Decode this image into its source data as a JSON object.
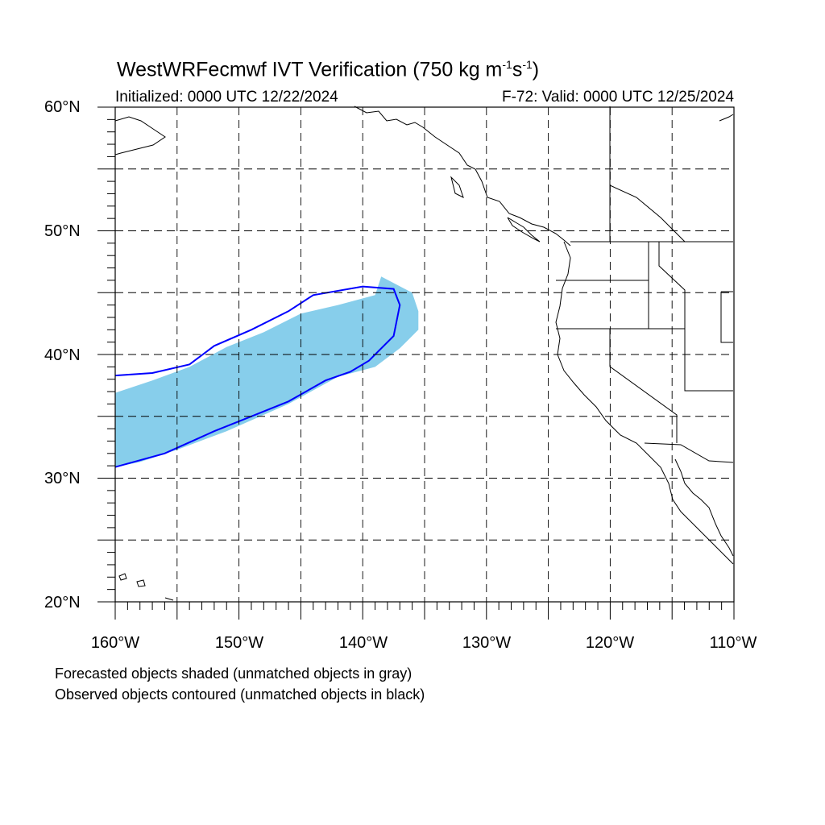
{
  "title": {
    "main": "WestWRFecmwf IVT Verification (750 kg m",
    "unit_exp1": "-1",
    "unit_mid": "s",
    "unit_exp2": "-1",
    "unit_close": ")"
  },
  "subtitle": {
    "initialized": "Initialized: 0000 UTC 12/22/2024",
    "valid": "F-72: Valid: 0000 UTC 12/25/2024"
  },
  "lat_labels": [
    "60°N",
    "50°N",
    "40°N",
    "30°N",
    "20°N"
  ],
  "lon_labels": [
    "160°W",
    "150°W",
    "140°W",
    "130°W",
    "120°W",
    "110°W"
  ],
  "notes": {
    "forecast": "Forecasted objects shaded (unmatched objects in gray)",
    "observed": "Observed objects contoured (unmatched objects in black)"
  },
  "colors": {
    "forecast_fill": "#87ceeb",
    "observed_contour": "#0000ff",
    "coastline": "#000000",
    "grid": "#000000"
  },
  "map_extent": {
    "lon": [
      -160,
      -110
    ],
    "lat": [
      20,
      60
    ]
  },
  "forecast_object": [
    [
      -160,
      36.9
    ],
    [
      -157,
      37.9
    ],
    [
      -154,
      39.0
    ],
    [
      -151,
      40.6
    ],
    [
      -148,
      41.8
    ],
    [
      -145,
      43.3
    ],
    [
      -142,
      44.0
    ],
    [
      -139,
      44.8
    ],
    [
      -138.5,
      46.3
    ],
    [
      -136,
      45.0
    ],
    [
      -135.5,
      43.5
    ],
    [
      -135.5,
      42.0
    ],
    [
      -137,
      40.5
    ],
    [
      -139,
      39.0
    ],
    [
      -142,
      38.2
    ],
    [
      -146,
      36.0
    ],
    [
      -151,
      33.8
    ],
    [
      -155,
      32.3
    ],
    [
      -158,
      31.3
    ],
    [
      -160,
      30.9
    ]
  ],
  "observed_contour": [
    [
      -160,
      38.3
    ],
    [
      -157,
      38.5
    ],
    [
      -154,
      39.2
    ],
    [
      -152,
      40.7
    ],
    [
      -149,
      42.0
    ],
    [
      -146,
      43.5
    ],
    [
      -144,
      44.8
    ],
    [
      -140,
      45.5
    ],
    [
      -137.5,
      45.3
    ],
    [
      -137,
      44.0
    ],
    [
      -137.5,
      41.5
    ],
    [
      -139.5,
      39.5
    ],
    [
      -141,
      38.6
    ],
    [
      -143,
      37.9
    ],
    [
      -146,
      36.2
    ],
    [
      -149,
      35.0
    ],
    [
      -152,
      33.8
    ],
    [
      -156,
      32.0
    ],
    [
      -160,
      30.9
    ]
  ]
}
